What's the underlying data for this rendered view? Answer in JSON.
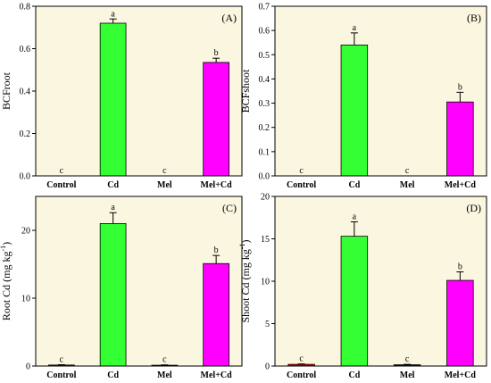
{
  "colors": {
    "plot_background": "#FBF6DF",
    "Control": "#E60000",
    "Cd": "#33FF33",
    "Mel": "#0000CC",
    "Mel+Cd": "#FF00FF"
  },
  "chart_data": [
    {
      "type": "bar",
      "panel": "(A)",
      "ylabel": "BCFroot",
      "ylabel_parts": [
        {
          "text": "BCFroot"
        }
      ],
      "ylim": [
        0,
        0.8
      ],
      "yticks": [
        0.0,
        0.2,
        0.4,
        0.6,
        0.8
      ],
      "ytick_labels": [
        "0.0",
        "0.2",
        "0.4",
        "0.6",
        "0.8"
      ],
      "categories": [
        "Control",
        "Cd",
        "Mel",
        "Mel+Cd"
      ],
      "values": [
        0,
        0.72,
        0,
        0.535
      ],
      "errors": [
        0,
        0.02,
        0,
        0.02
      ],
      "letters": [
        "c",
        "a",
        "c",
        "b"
      ]
    },
    {
      "type": "bar",
      "panel": "(B)",
      "ylabel": "BCFshoot",
      "ylabel_parts": [
        {
          "text": "BCFshoot"
        }
      ],
      "ylim": [
        0,
        0.7
      ],
      "yticks": [
        0.0,
        0.1,
        0.2,
        0.3,
        0.4,
        0.5,
        0.6,
        0.7
      ],
      "ytick_labels": [
        "0.0",
        "0.1",
        "0.2",
        "0.3",
        "0.4",
        "0.5",
        "0.6",
        "0.7"
      ],
      "categories": [
        "Control",
        "Cd",
        "Mel",
        "Mel+Cd"
      ],
      "values": [
        0,
        0.54,
        0,
        0.305
      ],
      "errors": [
        0,
        0.05,
        0,
        0.04
      ],
      "letters": [
        "c",
        "a",
        "c",
        "b"
      ]
    },
    {
      "type": "bar",
      "panel": "(C)",
      "ylabel": "Root Cd (mg kg-1)",
      "ylabel_parts": [
        {
          "text": "Root Cd (mg kg"
        },
        {
          "text": "-1",
          "sup": true
        },
        {
          "text": ")"
        }
      ],
      "ylim": [
        0,
        25
      ],
      "yticks": [
        0,
        10,
        20
      ],
      "ytick_labels": [
        "0",
        "10",
        "20"
      ],
      "categories": [
        "Control",
        "Cd",
        "Mel",
        "Mel+Cd"
      ],
      "values": [
        0.15,
        21.0,
        0.12,
        15.1
      ],
      "errors": [
        0.05,
        1.6,
        0.05,
        1.2
      ],
      "letters": [
        "c",
        "a",
        "c",
        "b"
      ]
    },
    {
      "type": "bar",
      "panel": "(D)",
      "ylabel": "Shoot Cd (mg kg-1)",
      "ylabel_parts": [
        {
          "text": "Shoot Cd (mg kg"
        },
        {
          "text": "-1",
          "sup": true
        },
        {
          "text": ")"
        }
      ],
      "ylim": [
        0,
        20
      ],
      "yticks": [
        0,
        5,
        10,
        15,
        20
      ],
      "ytick_labels": [
        "0",
        "5",
        "10",
        "15",
        "20"
      ],
      "categories": [
        "Control",
        "Cd",
        "Mel",
        "Mel+Cd"
      ],
      "values": [
        0.2,
        15.3,
        0.15,
        10.1
      ],
      "errors": [
        0.05,
        1.7,
        0.05,
        1.0
      ],
      "letters": [
        "c",
        "a",
        "c",
        "b"
      ]
    }
  ]
}
